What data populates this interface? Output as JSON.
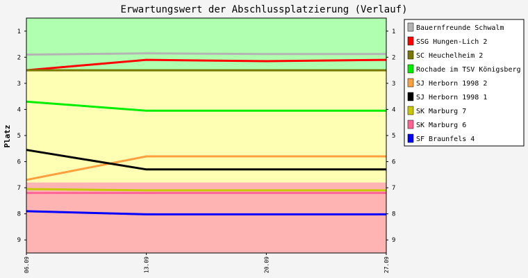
{
  "chart_data": {
    "type": "line",
    "title": "Erwartungswert der Abschlussplatzierung (Verlauf)",
    "ylabel": "Platz",
    "xlabel": "",
    "x": [
      "06.09",
      "13.09",
      "20.09",
      "27.09"
    ],
    "ylim": [
      0.5,
      9.5
    ],
    "yticks": [
      1,
      2,
      3,
      4,
      5,
      6,
      7,
      8,
      9
    ],
    "y_inverted": true,
    "legend_position": "top-right",
    "bands": [
      {
        "from": 0.5,
        "to": 2.5,
        "color": "#b0ffb0"
      },
      {
        "from": 2.5,
        "to": 6.8,
        "color": "#ffffb4"
      },
      {
        "from": 6.8,
        "to": 9.5,
        "color": "#ffb4b4"
      }
    ],
    "series": [
      {
        "name": "Bauernfreunde Schwalm",
        "color": "#b4b4b4",
        "values": [
          1.9,
          1.85,
          1.88,
          1.88
        ]
      },
      {
        "name": "SSG Hungen-Lich 2",
        "color": "#ff0000",
        "values": [
          2.5,
          2.1,
          2.15,
          2.1
        ]
      },
      {
        "name": "SC Heuchelheim 2",
        "color": "#787800",
        "values": [
          2.5,
          2.5,
          2.5,
          2.5
        ]
      },
      {
        "name": "Rochade im TSV Königsberg",
        "color": "#00ee00",
        "values": [
          3.7,
          4.05,
          4.05,
          4.05
        ]
      },
      {
        "name": "SJ Herborn 1998 2",
        "color": "#ffa040",
        "values": [
          6.7,
          5.8,
          5.8,
          5.8
        ]
      },
      {
        "name": "SJ Herborn 1998 1",
        "color": "#000000",
        "values": [
          5.55,
          6.3,
          6.3,
          6.3
        ]
      },
      {
        "name": "SK Marburg 7",
        "color": "#c8c800",
        "values": [
          7.05,
          7.1,
          7.1,
          7.1
        ]
      },
      {
        "name": "SK Marburg 6",
        "color": "#ff6496",
        "values": [
          7.2,
          7.2,
          7.2,
          7.2
        ]
      },
      {
        "name": "SF Braunfels 4",
        "color": "#0000ff",
        "values": [
          7.9,
          8.02,
          8.02,
          8.02
        ]
      }
    ]
  }
}
